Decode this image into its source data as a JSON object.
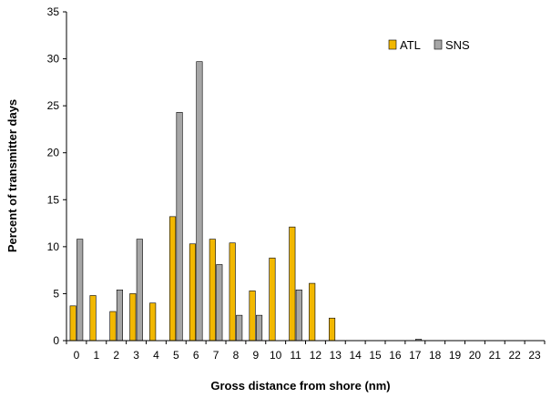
{
  "chart_data": {
    "type": "bar",
    "title": "",
    "xlabel": "Gross distance from shore (nm)",
    "ylabel": "Percent of transmitter days",
    "ylim": [
      0,
      35
    ],
    "yticks": [
      0,
      5,
      10,
      15,
      20,
      25,
      30,
      35
    ],
    "categories": [
      "0",
      "1",
      "2",
      "3",
      "4",
      "5",
      "6",
      "7",
      "8",
      "9",
      "10",
      "11",
      "12",
      "13",
      "14",
      "15",
      "16",
      "17",
      "18",
      "19",
      "20",
      "21",
      "22",
      "23"
    ],
    "series": [
      {
        "name": "ATL",
        "color": "#f2b800",
        "values": [
          3.7,
          4.8,
          3.1,
          5.0,
          4.0,
          13.2,
          10.3,
          10.8,
          10.4,
          5.3,
          8.8,
          12.1,
          6.1,
          2.4,
          0,
          0,
          0,
          0,
          0,
          0,
          0,
          0,
          0,
          0
        ]
      },
      {
        "name": "SNS",
        "color": "#a6a6a6",
        "values": [
          10.8,
          0,
          5.4,
          10.8,
          0,
          24.3,
          29.7,
          8.1,
          2.7,
          2.7,
          0,
          5.4,
          0,
          0,
          0,
          0,
          0,
          0.15,
          0,
          0,
          0,
          0,
          0,
          0
        ]
      }
    ],
    "legend_position": "top-right",
    "grid": false
  }
}
